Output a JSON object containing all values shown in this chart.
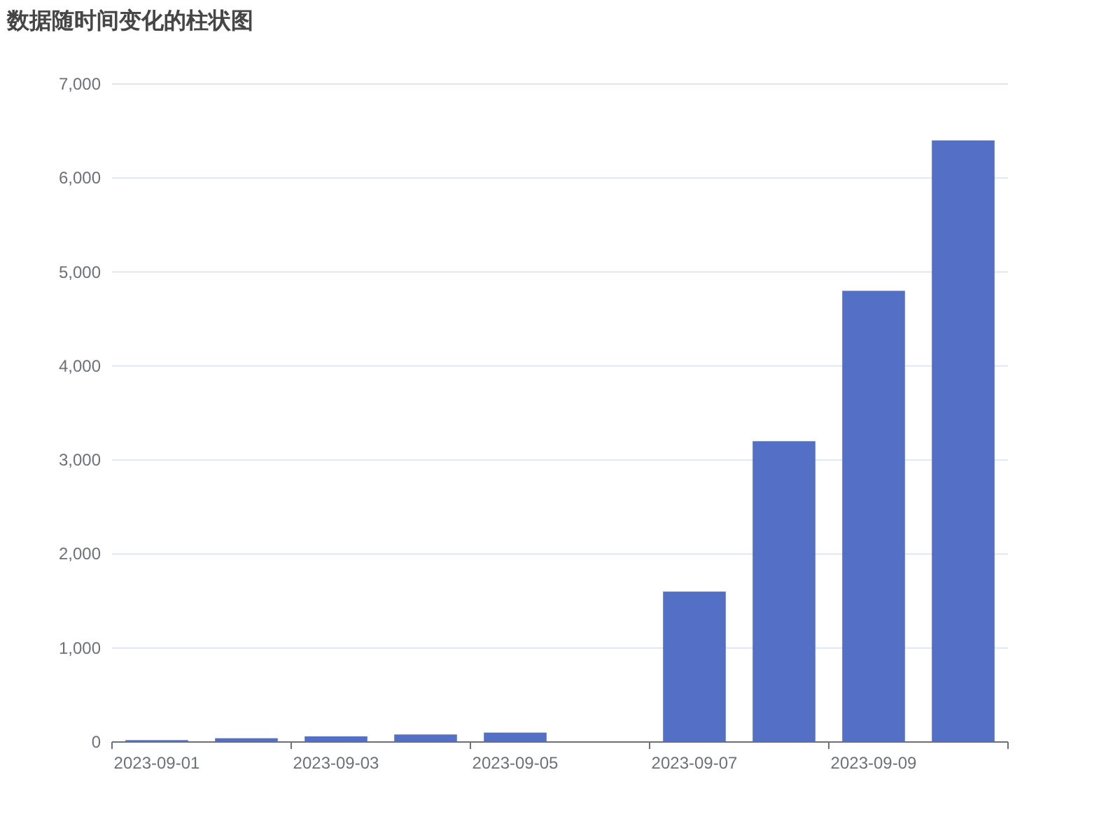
{
  "chart_data": {
    "type": "bar",
    "title": "数据随时间变化的柱状图",
    "categories": [
      "2023-09-01",
      null,
      "2023-09-03",
      null,
      "2023-09-05",
      null,
      "2023-09-07",
      null,
      "2023-09-09",
      null
    ],
    "values": [
      20,
      40,
      60,
      80,
      100,
      null,
      1600,
      3200,
      4800,
      6400
    ],
    "color": "#5470c6",
    "ylim": [
      0,
      7000
    ],
    "yticks": [
      0,
      {
        "value": 1000,
        "label": "1,000"
      },
      {
        "value": 2000,
        "label": "2,000"
      },
      {
        "value": 3000,
        "label": "3,000"
      },
      {
        "value": 4000,
        "label": "4,000"
      },
      {
        "value": 5000,
        "label": "5,000"
      },
      {
        "value": 6000,
        "label": "6,000"
      },
      {
        "value": 7000,
        "label": "7,000"
      }
    ],
    "grid": "y"
  }
}
